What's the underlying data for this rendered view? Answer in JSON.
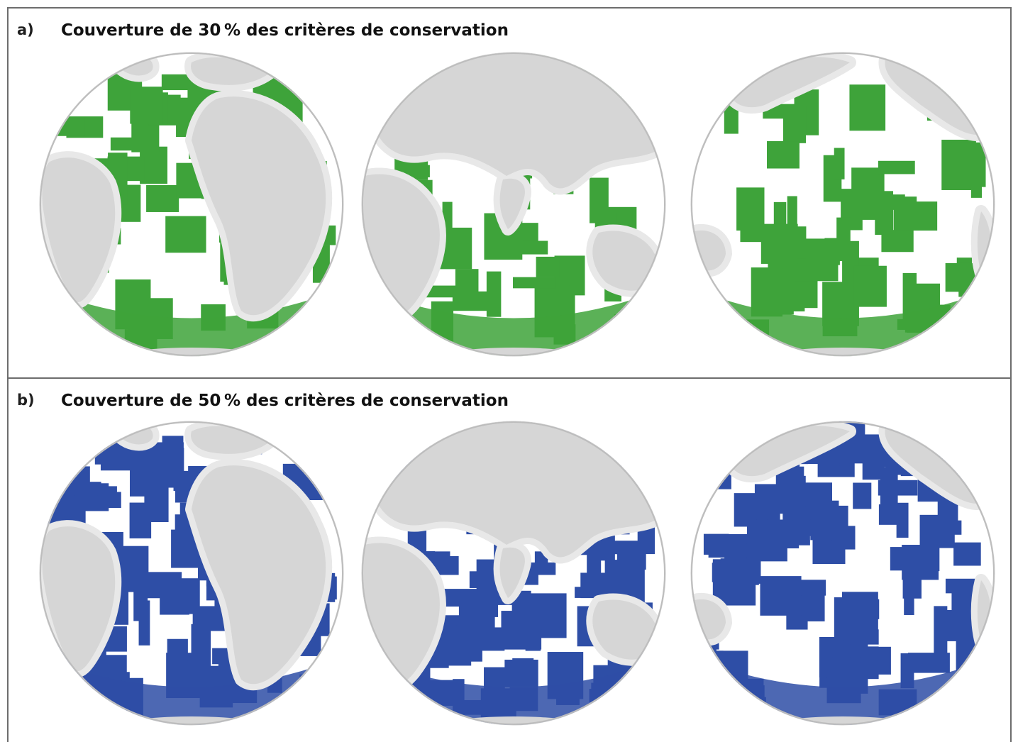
{
  "panels": [
    {
      "tag": "a)",
      "title": "Couverture de 30 % des critères de conservation",
      "color": "#3ea33a",
      "globes": [
        "atlantic-view",
        "indian-ocean-view",
        "pacific-view"
      ]
    },
    {
      "tag": "b)",
      "title": "Couverture de 50 % des critères de conservation",
      "color": "#2e4ea6",
      "globes": [
        "atlantic-view",
        "indian-ocean-view",
        "pacific-view"
      ]
    }
  ],
  "colors": {
    "land": "#d6d6d6",
    "shelf": "#e8e8e8",
    "ocean": "#ffffff",
    "border": "#6d6d6d"
  }
}
